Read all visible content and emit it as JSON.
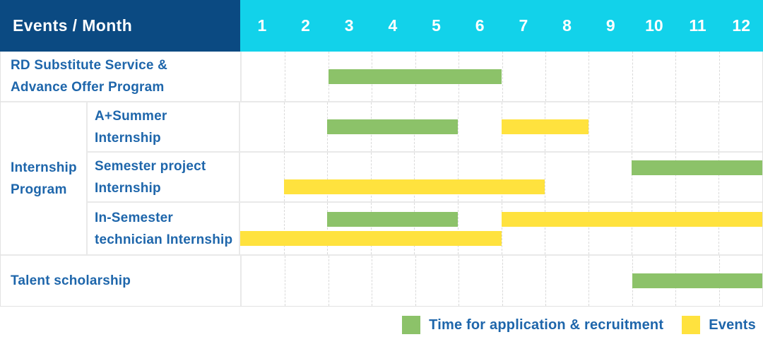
{
  "header": {
    "title": "Events / Month",
    "months": [
      "1",
      "2",
      "3",
      "4",
      "5",
      "6",
      "7",
      "8",
      "9",
      "10",
      "11",
      "12"
    ]
  },
  "labels": {
    "rd": [
      "RD Substitute Service &",
      "Advance Offer Program"
    ],
    "internship_group": [
      "Internship",
      "Program"
    ],
    "a_summer": [
      "A+Summer",
      "Internship"
    ],
    "semester_project": [
      "Semester project",
      "Internship"
    ],
    "in_semester": [
      "In-Semester",
      "technician Internship"
    ],
    "talent": [
      "Talent scholarship"
    ]
  },
  "legend": {
    "application": {
      "label": "Time for application & recruitment",
      "color": "#8CC269"
    },
    "events": {
      "label": "Events",
      "color": "#FFE23E"
    }
  },
  "colors": {
    "header_bg": "#0B4A82",
    "months_bg": "#12D2EA",
    "label_text": "#1E66AB",
    "bar_green": "#8CC269",
    "bar_yellow": "#FFE23E"
  },
  "chart_data": {
    "type": "gantt",
    "title": "Events / Month",
    "x_axis": {
      "unit": "month",
      "ticks": [
        1,
        2,
        3,
        4,
        5,
        6,
        7,
        8,
        9,
        10,
        11,
        12
      ],
      "range": [
        1,
        12
      ]
    },
    "legend_entries": [
      {
        "key": "application",
        "label": "Time for application & recruitment",
        "color": "#8CC269"
      },
      {
        "key": "events",
        "label": "Events",
        "color": "#FFE23E"
      }
    ],
    "rows": [
      {
        "key": "rd",
        "group": null,
        "label": "RD Substitute Service & Advance Offer Program",
        "bars": [
          {
            "type": "application",
            "start": 3,
            "end": 6,
            "lane": "single"
          }
        ]
      },
      {
        "key": "a_summer",
        "group": "Internship Program",
        "label": "A+Summer Internship",
        "bars": [
          {
            "type": "application",
            "start": 3,
            "end": 5,
            "lane": "single"
          },
          {
            "type": "events",
            "start": 7,
            "end": 8,
            "lane": "single"
          }
        ]
      },
      {
        "key": "semester_project",
        "group": "Internship Program",
        "label": "Semester project Internship",
        "bars": [
          {
            "type": "application",
            "start": 10,
            "end": 12,
            "lane": "top"
          },
          {
            "type": "events",
            "start": 2,
            "end": 7,
            "lane": "bottom"
          }
        ]
      },
      {
        "key": "in_semester",
        "group": "Internship Program",
        "label": "In-Semester technician Internship",
        "bars": [
          {
            "type": "application",
            "start": 3,
            "end": 5,
            "lane": "top"
          },
          {
            "type": "events",
            "start": 7,
            "end": 12,
            "lane": "top"
          },
          {
            "type": "events",
            "start": 1,
            "end": 6,
            "lane": "bottom"
          }
        ]
      },
      {
        "key": "talent",
        "group": null,
        "label": "Talent scholarship",
        "bars": [
          {
            "type": "application",
            "start": 10,
            "end": 12,
            "lane": "single"
          }
        ]
      }
    ]
  }
}
